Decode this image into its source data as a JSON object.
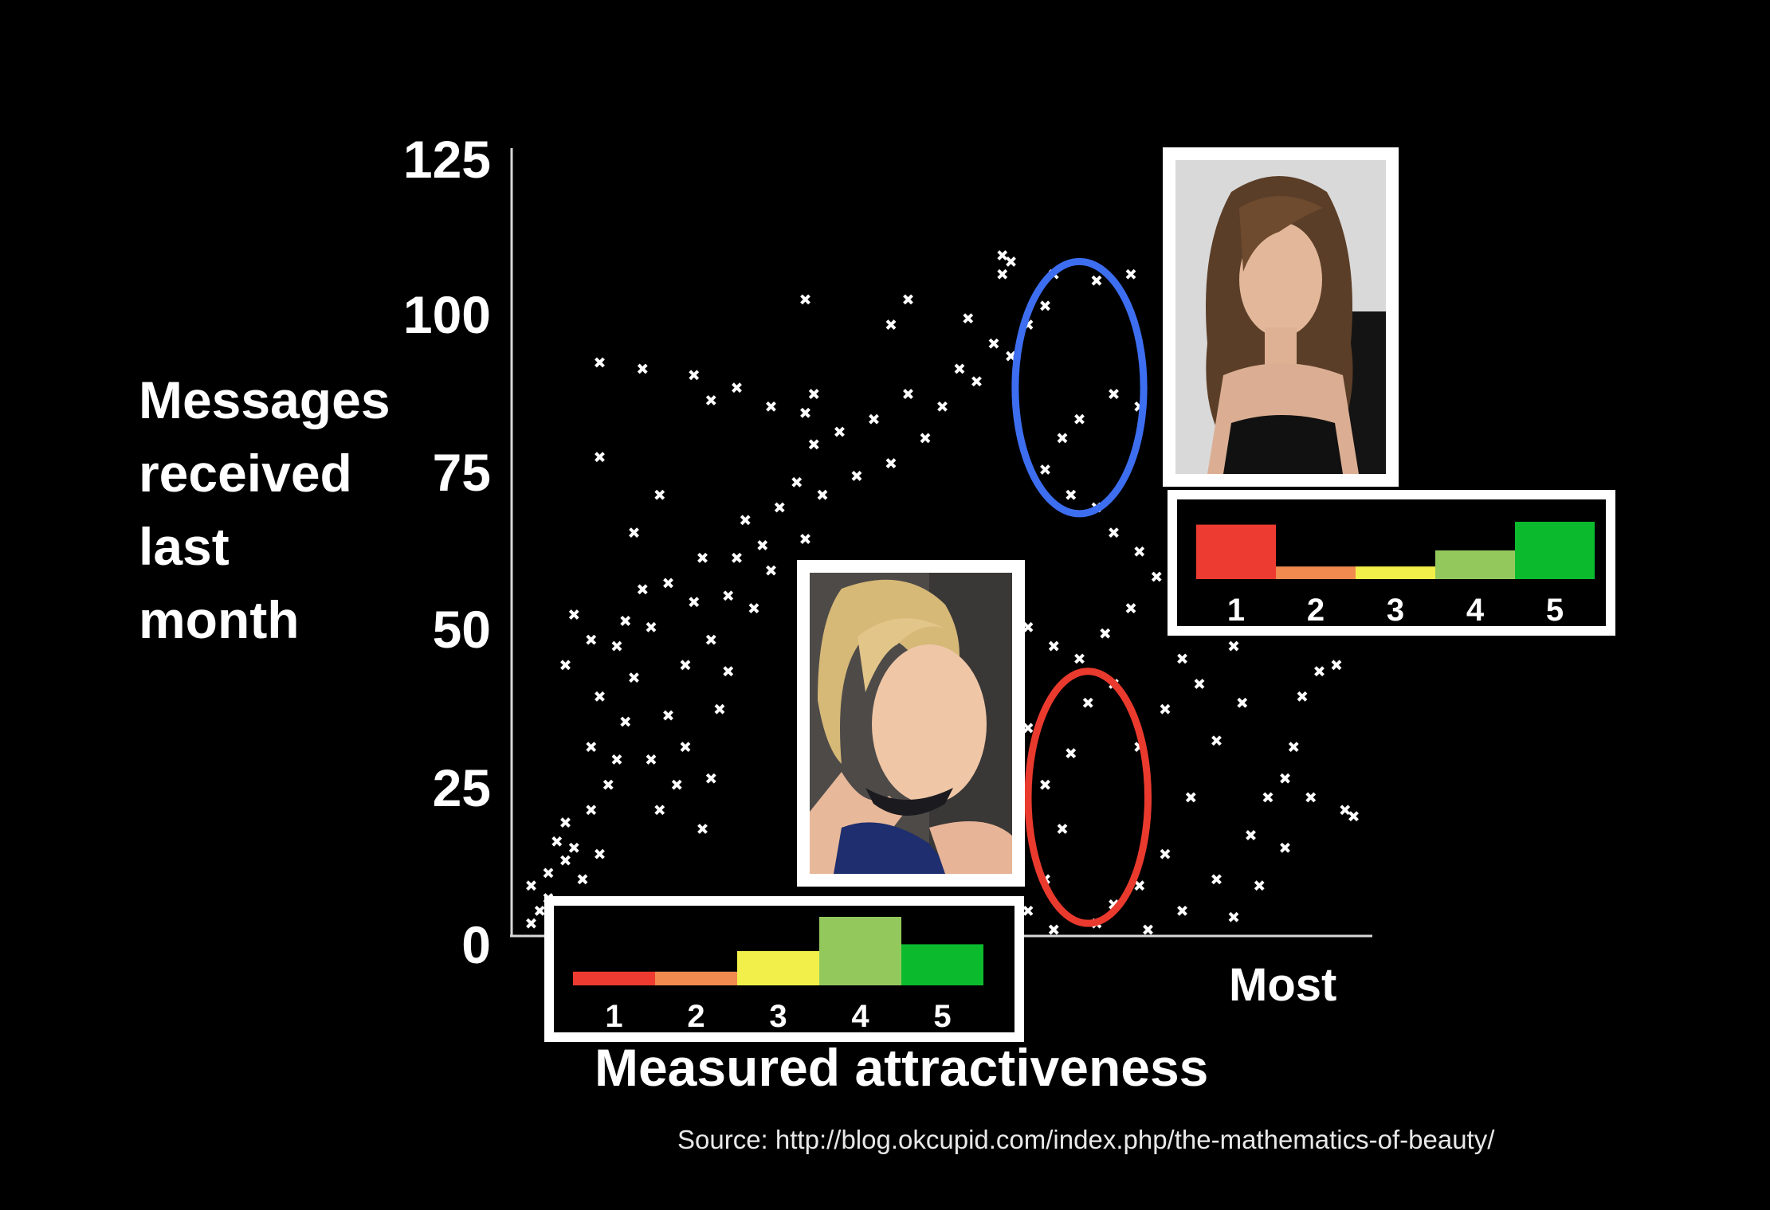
{
  "chart_data": {
    "type": "scatter",
    "title": "",
    "xlabel": "Measured attractiveness",
    "x_end_label": "Most",
    "ylabel_lines": [
      "Messages",
      "received",
      "last",
      "month"
    ],
    "yticks": [
      "0",
      "25",
      "50",
      "75",
      "100",
      "125"
    ],
    "ylim": [
      0,
      125
    ],
    "xlim": [
      0,
      1
    ],
    "x_numeric_ticks": false,
    "grid": false,
    "point_color": "#ffffff",
    "marker": "x",
    "series": [
      {
        "values": [
          [
            0.02,
            2
          ],
          [
            0.03,
            4
          ],
          [
            0.04,
            6
          ],
          [
            0.02,
            8
          ],
          [
            0.05,
            3
          ],
          [
            0.06,
            12
          ],
          [
            0.05,
            15
          ],
          [
            0.04,
            10
          ],
          [
            0.07,
            14
          ],
          [
            0.07,
            5
          ],
          [
            0.08,
            9
          ],
          [
            0.06,
            18
          ],
          [
            0.09,
            20
          ],
          [
            0.1,
            13
          ],
          [
            0.09,
            30
          ],
          [
            0.06,
            43
          ],
          [
            0.07,
            51
          ],
          [
            0.09,
            47
          ],
          [
            0.1,
            38
          ],
          [
            0.11,
            24
          ],
          [
            0.12,
            28
          ],
          [
            0.13,
            34
          ],
          [
            0.14,
            41
          ],
          [
            0.12,
            46
          ],
          [
            0.13,
            50
          ],
          [
            0.15,
            55
          ],
          [
            0.16,
            49
          ],
          [
            0.14,
            64
          ],
          [
            0.17,
            70
          ],
          [
            0.18,
            56
          ],
          [
            0.16,
            28
          ],
          [
            0.17,
            20
          ],
          [
            0.18,
            35
          ],
          [
            0.19,
            24
          ],
          [
            0.2,
            30
          ],
          [
            0.2,
            43
          ],
          [
            0.21,
            53
          ],
          [
            0.22,
            60
          ],
          [
            0.23,
            47
          ],
          [
            0.24,
            36
          ],
          [
            0.25,
            42
          ],
          [
            0.23,
            25
          ],
          [
            0.22,
            17
          ],
          [
            0.25,
            54
          ],
          [
            0.26,
            60
          ],
          [
            0.27,
            66
          ],
          [
            0.29,
            62
          ],
          [
            0.28,
            52
          ],
          [
            0.3,
            58
          ],
          [
            0.31,
            68
          ],
          [
            0.33,
            72
          ],
          [
            0.34,
            63
          ],
          [
            0.35,
            78
          ],
          [
            0.36,
            70
          ],
          [
            0.38,
            80
          ],
          [
            0.4,
            73
          ],
          [
            0.42,
            82
          ],
          [
            0.44,
            75
          ],
          [
            0.46,
            86
          ],
          [
            0.48,
            79
          ],
          [
            0.5,
            84
          ],
          [
            0.52,
            90
          ],
          [
            0.54,
            88
          ],
          [
            0.56,
            94
          ],
          [
            0.58,
            92
          ],
          [
            0.6,
            97
          ],
          [
            0.62,
            100
          ],
          [
            0.1,
            76
          ],
          [
            0.1,
            91
          ],
          [
            0.15,
            90
          ],
          [
            0.21,
            89
          ],
          [
            0.23,
            85
          ],
          [
            0.26,
            87
          ],
          [
            0.3,
            84
          ],
          [
            0.34,
            83
          ],
          [
            0.35,
            86
          ],
          [
            0.34,
            101
          ],
          [
            0.46,
            101
          ],
          [
            0.44,
            97
          ],
          [
            0.53,
            98
          ],
          [
            0.57,
            105
          ],
          [
            0.57,
            108
          ],
          [
            0.58,
            107
          ],
          [
            0.63,
            105
          ],
          [
            0.68,
            104
          ],
          [
            0.72,
            105
          ],
          [
            0.7,
            86
          ],
          [
            0.73,
            84
          ],
          [
            0.66,
            82
          ],
          [
            0.64,
            79
          ],
          [
            0.62,
            74
          ],
          [
            0.65,
            70
          ],
          [
            0.68,
            68
          ],
          [
            0.7,
            64
          ],
          [
            0.73,
            61
          ],
          [
            0.75,
            57
          ],
          [
            0.72,
            52
          ],
          [
            0.69,
            48
          ],
          [
            0.66,
            44
          ],
          [
            0.63,
            46
          ],
          [
            0.6,
            49
          ],
          [
            0.57,
            42
          ],
          [
            0.6,
            33
          ],
          [
            0.62,
            24
          ],
          [
            0.64,
            17
          ],
          [
            0.62,
            9
          ],
          [
            0.6,
            4
          ],
          [
            0.63,
            1
          ],
          [
            0.65,
            29
          ],
          [
            0.67,
            37
          ],
          [
            0.7,
            40
          ],
          [
            0.73,
            30
          ],
          [
            0.76,
            36
          ],
          [
            0.78,
            44
          ],
          [
            0.8,
            40
          ],
          [
            0.82,
            50
          ],
          [
            0.84,
            46
          ],
          [
            0.85,
            37
          ],
          [
            0.82,
            31
          ],
          [
            0.79,
            22
          ],
          [
            0.76,
            13
          ],
          [
            0.73,
            8
          ],
          [
            0.7,
            5
          ],
          [
            0.68,
            2
          ],
          [
            0.74,
            1
          ],
          [
            0.78,
            4
          ],
          [
            0.82,
            9
          ],
          [
            0.86,
            16
          ],
          [
            0.88,
            22
          ],
          [
            0.9,
            25
          ],
          [
            0.91,
            30
          ],
          [
            0.92,
            38
          ],
          [
            0.94,
            42
          ],
          [
            0.96,
            43
          ],
          [
            0.93,
            22
          ],
          [
            0.9,
            14
          ],
          [
            0.87,
            8
          ],
          [
            0.84,
            3
          ],
          [
            0.97,
            20
          ],
          [
            0.98,
            19
          ],
          [
            0.88,
            55
          ],
          [
            0.87,
            60
          ],
          [
            0.9,
            49
          ],
          [
            0.83,
            58
          ]
        ]
      }
    ],
    "annotations": [
      {
        "kind": "ellipse",
        "color": "#3d6ef0",
        "cx": 0.66,
        "cy": 87,
        "rx": 0.075,
        "ry": 20
      },
      {
        "kind": "ellipse",
        "color": "#ea3a2e",
        "cx": 0.67,
        "cy": 22,
        "rx": 0.07,
        "ry": 20
      }
    ],
    "insets": [
      {
        "kind": "photo",
        "name": "photo-lower-profile",
        "subject": "smiling blonde woman in side profile"
      },
      {
        "kind": "photo",
        "name": "photo-upper-profile",
        "subject": "woman with long brown hair"
      },
      {
        "kind": "histogram",
        "name": "rating-histogram-lower",
        "categories": [
          "1",
          "2",
          "3",
          "4",
          "5"
        ],
        "values": [
          0.2,
          0.2,
          0.5,
          1.0,
          0.6
        ],
        "colors": [
          "#ee3b32",
          "#f08a4f",
          "#f2ef4b",
          "#93c95c",
          "#0cba2e"
        ]
      },
      {
        "kind": "histogram",
        "name": "rating-histogram-upper",
        "categories": [
          "1",
          "2",
          "3",
          "4",
          "5"
        ],
        "values": [
          0.95,
          0.22,
          0.22,
          0.5,
          1.0
        ],
        "colors": [
          "#ee3b32",
          "#f08a4f",
          "#f2ef4b",
          "#93c95c",
          "#0cba2e"
        ]
      }
    ]
  },
  "source_note": "Source: http://blog.okcupid.com/index.php/the-mathematics-of-beauty/"
}
